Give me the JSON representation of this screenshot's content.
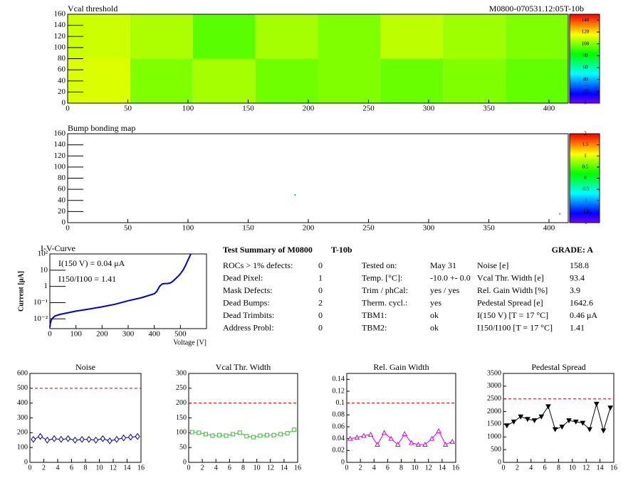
{
  "chart_data": [
    {
      "type": "heatmap",
      "title": "Vcal threshold",
      "subtitle": "M0800-070531.12:05T-10b",
      "x_edges": [
        0,
        52,
        104,
        156,
        208,
        260,
        312,
        364,
        416
      ],
      "y_edges": [
        0,
        80,
        160
      ],
      "z": [
        [
          112,
          100,
          105,
          98,
          100,
          97,
          100,
          96
        ],
        [
          110,
          106,
          95,
          105,
          100,
          108,
          104,
          100
        ]
      ],
      "xlim": [
        0,
        416
      ],
      "ylim": [
        0,
        160
      ],
      "xticks": [
        0,
        50,
        100,
        150,
        200,
        250,
        300,
        350,
        400
      ],
      "yticks": [
        0,
        20,
        40,
        60,
        80,
        100,
        120,
        140,
        160
      ],
      "zlim": [
        0,
        150
      ],
      "zticks": [
        0,
        20,
        40,
        60,
        80,
        100,
        120,
        140
      ]
    },
    {
      "type": "heatmap",
      "title": "Bump bonding map",
      "points": {
        "x": [
          189,
          409
        ],
        "y": [
          50,
          16
        ]
      },
      "xlim": [
        0,
        416
      ],
      "ylim": [
        0,
        160
      ],
      "xticks": [
        0,
        50,
        100,
        150,
        200,
        250,
        300,
        350,
        400
      ],
      "yticks": [
        0,
        20,
        40,
        60,
        80,
        100,
        120,
        140,
        160
      ],
      "zlim": [
        -2,
        2
      ],
      "zticks": [
        -2,
        -1.5,
        -1,
        -0.5,
        0,
        0.5,
        1,
        1.5,
        2
      ]
    },
    {
      "type": "line",
      "title": "I-V-Curve",
      "xlabel": "Voltage [V]",
      "ylabel": "Current [μA]",
      "annotations": [
        "I(150 V) = 0.04 μA",
        "I150/I100 =  1.41"
      ],
      "log_y": true,
      "color": "#0000cc",
      "x": [
        0,
        2,
        5,
        10,
        20,
        40,
        70,
        100,
        150,
        200,
        250,
        300,
        350,
        400,
        410,
        420,
        430,
        440,
        450,
        460,
        470,
        480,
        490,
        500,
        510,
        520,
        530,
        540
      ],
      "values": [
        0.003,
        0.005,
        0.008,
        0.011,
        0.015,
        0.019,
        0.024,
        0.03,
        0.04,
        0.055,
        0.08,
        0.13,
        0.2,
        0.35,
        0.5,
        1.0,
        1.4,
        1.5,
        1.5,
        1.6,
        2.0,
        2.8,
        4,
        6,
        10,
        20,
        45,
        100
      ],
      "xlim": [
        0,
        600
      ],
      "ylim": [
        0.0025,
        100
      ],
      "xticks": [
        0,
        100,
        200,
        300,
        400,
        500
      ],
      "yticks": [
        {
          "value": 0.01,
          "label": "10⁻²"
        },
        {
          "value": 0.1,
          "label": "10⁻¹"
        },
        1,
        10,
        {
          "value": 100,
          "label": "10²"
        }
      ]
    },
    {
      "type": "line",
      "title": "Noise",
      "color": "#0000aa",
      "marker": "diamond-open",
      "reference_line": 500,
      "x": [
        0.5,
        1.5,
        2.5,
        3.5,
        4.5,
        5.5,
        6.5,
        7.5,
        8.5,
        9.5,
        10.5,
        11.5,
        12.5,
        13.5,
        14.5,
        15.5
      ],
      "values": [
        155,
        175,
        150,
        160,
        155,
        160,
        150,
        155,
        155,
        150,
        160,
        145,
        155,
        165,
        170,
        175
      ],
      "xlim": [
        0,
        16
      ],
      "ylim": [
        0,
        600
      ],
      "xticks": [
        0,
        2,
        4,
        6,
        8,
        10,
        12,
        14,
        16
      ],
      "yticks": [
        0,
        100,
        200,
        300,
        400,
        500,
        600
      ]
    },
    {
      "type": "line",
      "title": "Vcal Thr. Width",
      "color": "#33bb33",
      "marker": "square-open",
      "reference_line": 200,
      "x": [
        0.5,
        1.5,
        2.5,
        3.5,
        4.5,
        5.5,
        6.5,
        7.5,
        8.5,
        9.5,
        10.5,
        11.5,
        12.5,
        13.5,
        14.5,
        15.5
      ],
      "values": [
        102,
        100,
        95,
        90,
        92,
        90,
        95,
        100,
        88,
        85,
        90,
        92,
        92,
        95,
        98,
        110
      ],
      "xlim": [
        0,
        16
      ],
      "ylim": [
        0,
        300
      ],
      "xticks": [
        0,
        2,
        4,
        6,
        8,
        10,
        12,
        14,
        16
      ],
      "yticks": [
        0,
        50,
        100,
        150,
        200,
        250,
        300
      ]
    },
    {
      "type": "line",
      "title": "Rel. Gain Width",
      "color": "#dd00dd",
      "marker": "triangle-open",
      "reference_line": 0.1,
      "x": [
        0.5,
        1.5,
        2.5,
        3.5,
        4.5,
        5.5,
        6.5,
        7.5,
        8.5,
        9.5,
        10.5,
        11.5,
        12.5,
        13.5,
        14.5,
        15.5
      ],
      "values": [
        0.04,
        0.042,
        0.045,
        0.047,
        0.03,
        0.05,
        0.04,
        0.03,
        0.048,
        0.033,
        0.03,
        0.03,
        0.04,
        0.053,
        0.03,
        0.035
      ],
      "xlim": [
        0,
        16
      ],
      "ylim": [
        0,
        0.15
      ],
      "xticks": [
        0,
        2,
        4,
        6,
        8,
        10,
        12,
        14,
        16
      ],
      "yticks": [
        0,
        0.02,
        0.04,
        0.06,
        0.08,
        0.1,
        0.12,
        0.14
      ]
    },
    {
      "type": "line",
      "title": "Pedestal Spread",
      "color": "#000000",
      "marker": "triangle-down",
      "reference_line": 2500,
      "x": [
        0.5,
        1.5,
        2.5,
        3.5,
        4.5,
        5.5,
        6.5,
        7.5,
        8.5,
        9.5,
        10.5,
        11.5,
        12.5,
        13.5,
        14.5,
        15.5
      ],
      "values": [
        1450,
        1600,
        1800,
        1700,
        1650,
        1800,
        2200,
        1300,
        1400,
        1650,
        1600,
        1550,
        1300,
        2300,
        1250,
        2150
      ],
      "xlim": [
        0,
        16
      ],
      "ylim": [
        0,
        3500
      ],
      "xticks": [
        0,
        2,
        4,
        6,
        8,
        10,
        12,
        14,
        16
      ],
      "yticks": [
        0,
        500,
        1000,
        1500,
        2000,
        2500,
        3000,
        3500
      ]
    }
  ],
  "summary": {
    "title": "Test Summary of M0800",
    "tag": "T-10b",
    "grade": "GRADE:  A",
    "defects": [
      [
        "ROCs > 1% defects:",
        0
      ],
      [
        "Dead Pixel:",
        1
      ],
      [
        "Mask Defects:",
        0
      ],
      [
        "Dead Bumps:",
        2
      ],
      [
        "Dead Trimbits:",
        0
      ],
      [
        "Address Probl:",
        0
      ]
    ],
    "conditions": [
      [
        "Tested on:",
        "May 31"
      ],
      [
        "Temp. [°C]:",
        "-10.0 +- 0.0"
      ],
      [
        "Trim / phCal:",
        "yes / yes"
      ],
      [
        "Therm. cycl.:",
        "yes"
      ],
      [
        "TBM1:",
        "ok"
      ],
      [
        "TBM2:",
        "ok"
      ]
    ],
    "results": [
      [
        "Noise [e]",
        158.8
      ],
      [
        "Vcal Thr. Width [e]",
        93.4
      ],
      [
        "Rel. Gain Width [%]",
        3.9
      ],
      [
        "Pedestal Spread [e]",
        1642.6
      ],
      [
        "I(150 V) [T = 17 °C]",
        "0.46 μA"
      ],
      [
        "I150/I100  [T = 17 °C]",
        1.41
      ]
    ]
  }
}
